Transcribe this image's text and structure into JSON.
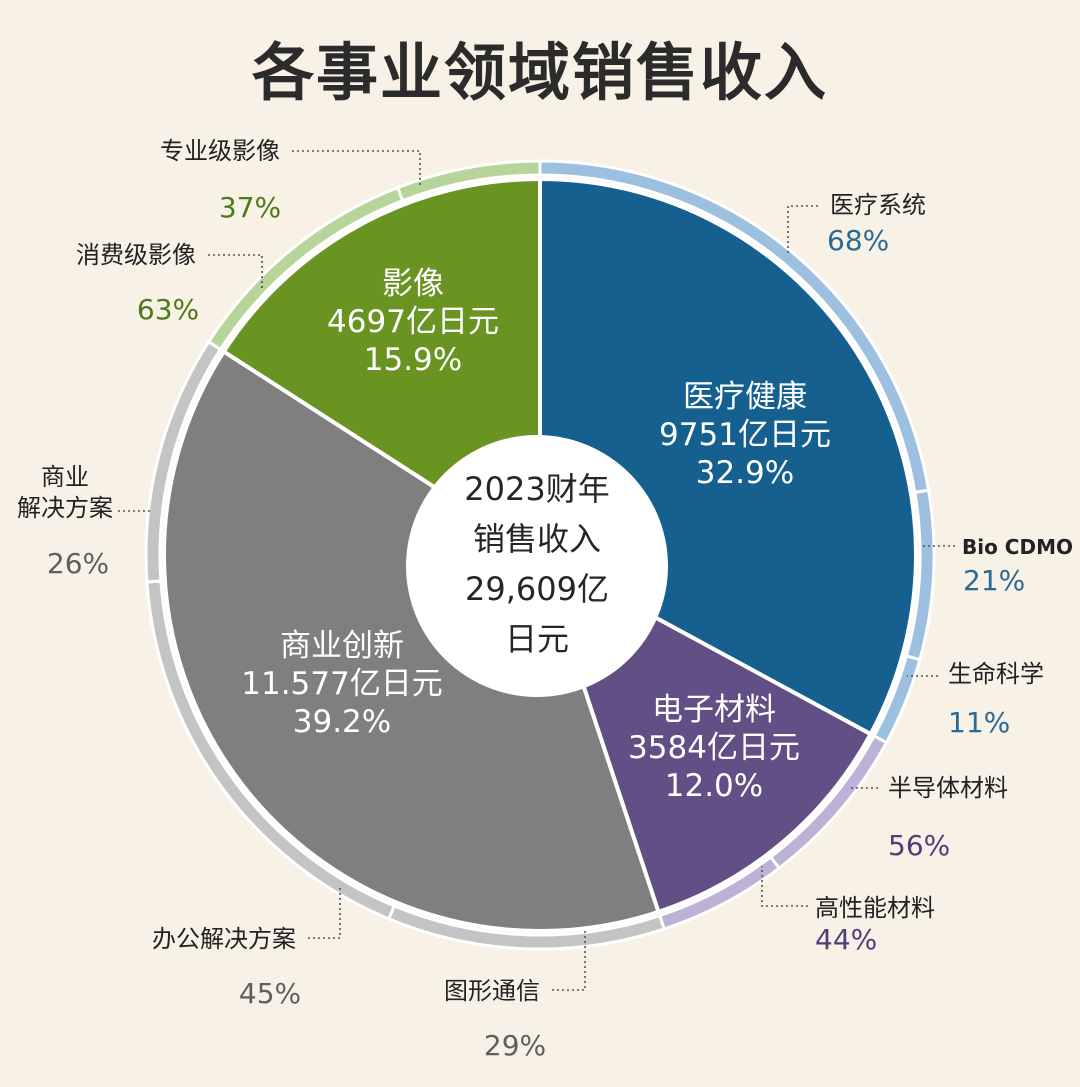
{
  "chart_data": {
    "type": "pie",
    "title": "各事业领域销售收入",
    "center_label": [
      "2023财年",
      "销售收入",
      "29,609亿",
      "日元"
    ],
    "segments": [
      {
        "name": "医疗健康",
        "value_label": "9751亿日元",
        "percent": 32.9,
        "percent_label": "32.9%",
        "color": "#15608f",
        "ring_color": "#9dbfe0",
        "subsegments": [
          {
            "name": "医疗系统",
            "percent": 68,
            "percent_label": "68%"
          },
          {
            "name": "Bio CDMO",
            "percent": 21,
            "percent_label": "21%"
          },
          {
            "name": "生命科学",
            "percent": 11,
            "percent_label": "11%"
          }
        ]
      },
      {
        "name": "电子材料",
        "value_label": "3584亿日元",
        "percent": 12.0,
        "percent_label": "12.0%",
        "color": "#614f86",
        "ring_color": "#bcb2d5",
        "subsegments": [
          {
            "name": "半导体材料",
            "percent": 56,
            "percent_label": "56%"
          },
          {
            "name": "高性能材料",
            "percent": 44,
            "percent_label": "44%"
          }
        ]
      },
      {
        "name": "商业创新",
        "value_label": "11.577亿日元",
        "percent": 39.2,
        "percent_label": "39.2%",
        "color": "#7f7f7f",
        "ring_color": "#c4c4c4",
        "subsegments": [
          {
            "name": "图形通信",
            "percent": 29,
            "percent_label": "29%"
          },
          {
            "name": "办公解决方案",
            "percent": 45,
            "percent_label": "45%"
          },
          {
            "name": "商业\n解决方案",
            "percent": 26,
            "percent_label": "26%"
          }
        ]
      },
      {
        "name": "影像",
        "value_label": "4697亿日元",
        "percent": 15.9,
        "percent_label": "15.9%",
        "color": "#6a9422",
        "ring_color": "#b7d59a",
        "subsegments": [
          {
            "name": "消费级影像",
            "percent": 63,
            "percent_label": "63%"
          },
          {
            "name": "专业级影像",
            "percent": 37,
            "percent_label": "37%"
          }
        ]
      }
    ]
  }
}
